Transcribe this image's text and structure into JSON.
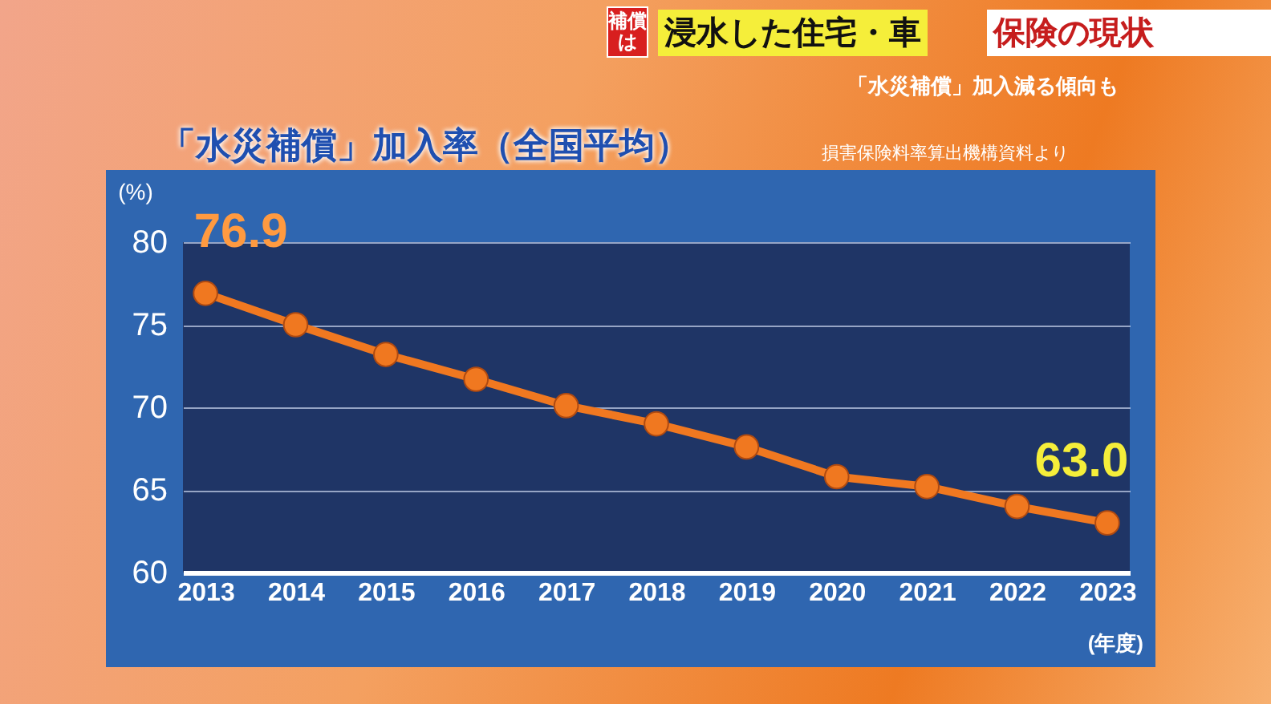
{
  "chart_data": {
    "type": "line",
    "title": "「水災補償」加入率（全国平均）",
    "annotations": [
      "補償は",
      "浸水した住宅・車",
      "保険の現状",
      "「水災補償」加入減る傾向も",
      "損害保険料率算出機構資料より"
    ],
    "xlabel": "(年度)",
    "ylabel": "(%)",
    "categories": [
      "2013",
      "2014",
      "2015",
      "2016",
      "2017",
      "2018",
      "2019",
      "2020",
      "2021",
      "2022",
      "2023"
    ],
    "series": [
      {
        "color": "#f07820",
        "values": [
          76.9,
          75.0,
          73.2,
          71.7,
          70.1,
          69.0,
          67.6,
          65.8,
          65.2,
          64.0,
          63.0
        ],
        "value_labels": [
          "76.9",
          null,
          null,
          null,
          null,
          null,
          null,
          null,
          null,
          null,
          "63.0"
        ]
      }
    ],
    "ylim": [
      60,
      80
    ],
    "yticks": [
      60,
      65,
      70,
      75,
      80
    ],
    "grid": "y",
    "marker": "circle",
    "line_style": "solid"
  }
}
